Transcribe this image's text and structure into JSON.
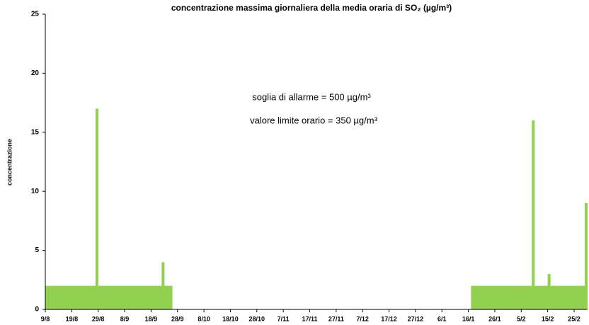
{
  "chart_data": {
    "type": "bar",
    "title": "concentrazione massima giornaliera della media oraria di SO₂ (µg/m³)",
    "y_label": "concentrazione",
    "annotations": [
      "soglia di allarme = 500 µg/m³",
      "valore limite orario = 350 µg/m³"
    ],
    "color": "#92d050",
    "ylim": [
      0,
      25
    ],
    "yticks": [
      0,
      5,
      10,
      15,
      20,
      25
    ],
    "grid": false,
    "categories": [
      "9/8",
      null,
      null,
      null,
      null,
      null,
      null,
      null,
      null,
      null,
      "19/8",
      null,
      null,
      null,
      null,
      null,
      null,
      null,
      null,
      null,
      "29/8",
      null,
      null,
      null,
      null,
      null,
      null,
      null,
      null,
      null,
      "8/9",
      null,
      null,
      null,
      null,
      null,
      null,
      null,
      null,
      null,
      "18/9",
      null,
      null,
      null,
      null,
      null,
      null,
      null,
      null,
      null,
      "28/9",
      null,
      null,
      null,
      null,
      null,
      null,
      null,
      null,
      null,
      "8/10",
      null,
      null,
      null,
      null,
      null,
      null,
      null,
      null,
      null,
      "18/10",
      null,
      null,
      null,
      null,
      null,
      null,
      null,
      null,
      null,
      "28/10",
      null,
      null,
      null,
      null,
      null,
      null,
      null,
      null,
      null,
      "7/11",
      null,
      null,
      null,
      null,
      null,
      null,
      null,
      null,
      null,
      "17/11",
      null,
      null,
      null,
      null,
      null,
      null,
      null,
      null,
      null,
      "27/11",
      null,
      null,
      null,
      null,
      null,
      null,
      null,
      null,
      null,
      "7/12",
      null,
      null,
      null,
      null,
      null,
      null,
      null,
      null,
      null,
      "17/12",
      null,
      null,
      null,
      null,
      null,
      null,
      null,
      null,
      null,
      "27/12",
      null,
      null,
      null,
      null,
      null,
      null,
      null,
      null,
      null,
      "6/1",
      null,
      null,
      null,
      null,
      null,
      null,
      null,
      null,
      null,
      "16/1",
      null,
      null,
      null,
      null,
      null,
      null,
      null,
      null,
      null,
      "26/1",
      null,
      null,
      null,
      null,
      null,
      null,
      null,
      null,
      null,
      "5/2",
      null,
      null,
      null,
      null,
      null,
      null,
      null,
      null,
      null,
      "15/2",
      null,
      null,
      null,
      null,
      null,
      null,
      null,
      null,
      null,
      "25/2",
      null,
      null,
      null,
      null
    ],
    "values": [
      2,
      2,
      2,
      2,
      2,
      2,
      2,
      2,
      2,
      2,
      2,
      2,
      2,
      2,
      2,
      2,
      2,
      2,
      2,
      17,
      2,
      2,
      2,
      2,
      2,
      2,
      2,
      2,
      2,
      2,
      2,
      2,
      2,
      2,
      2,
      2,
      2,
      2,
      2,
      2,
      2,
      2,
      2,
      2,
      4,
      2,
      2,
      2,
      null,
      null,
      null,
      null,
      null,
      null,
      null,
      null,
      null,
      null,
      null,
      null,
      null,
      null,
      null,
      null,
      null,
      null,
      null,
      null,
      null,
      null,
      null,
      null,
      null,
      null,
      null,
      null,
      null,
      null,
      null,
      null,
      null,
      null,
      null,
      null,
      null,
      null,
      null,
      null,
      null,
      null,
      null,
      null,
      null,
      null,
      null,
      null,
      null,
      null,
      null,
      null,
      null,
      null,
      null,
      null,
      null,
      null,
      null,
      null,
      null,
      null,
      null,
      null,
      null,
      null,
      null,
      null,
      null,
      null,
      null,
      null,
      null,
      null,
      null,
      null,
      null,
      null,
      null,
      null,
      null,
      null,
      null,
      null,
      null,
      null,
      null,
      null,
      null,
      null,
      null,
      null,
      null,
      null,
      null,
      null,
      null,
      null,
      null,
      null,
      null,
      null,
      null,
      null,
      null,
      null,
      null,
      null,
      null,
      null,
      null,
      null,
      null,
      2,
      2,
      2,
      2,
      2,
      2,
      2,
      2,
      2,
      2,
      2,
      2,
      2,
      2,
      2,
      2,
      2,
      2,
      2,
      2,
      2,
      2,
      2,
      16,
      2,
      2,
      2,
      2,
      2,
      3,
      2,
      2,
      2,
      2,
      2,
      2,
      2,
      2,
      2,
      2,
      2,
      2,
      2,
      9
    ]
  }
}
